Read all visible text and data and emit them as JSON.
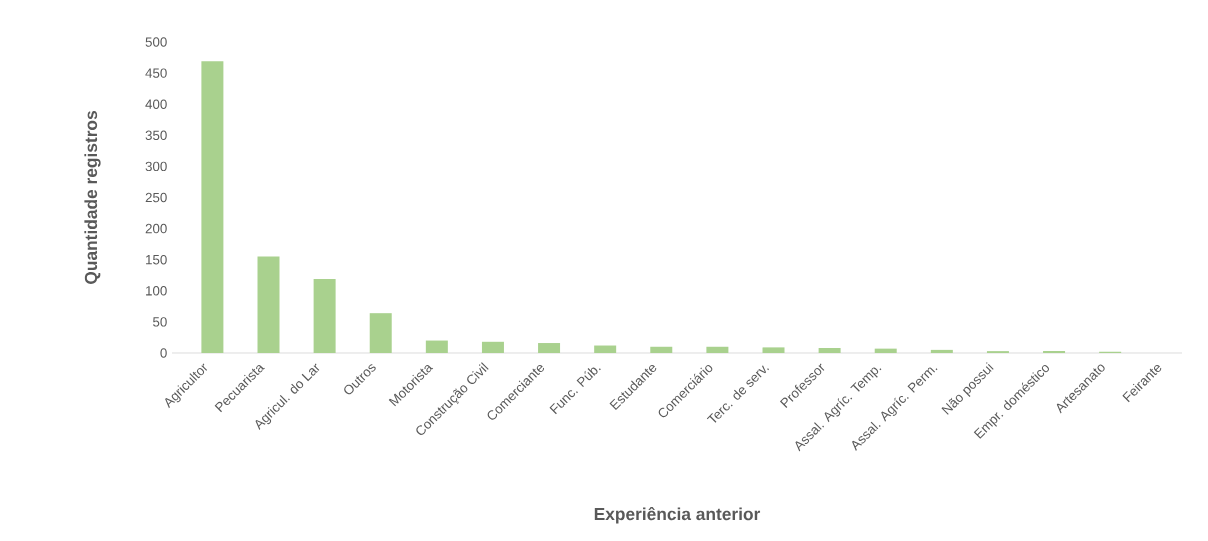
{
  "chart_data": {
    "type": "bar",
    "xlabel": "Experiência anterior",
    "ylabel": "Quantidade registros",
    "categories": [
      "Agricultor",
      "Pecuarista",
      "Agricul. do Lar",
      "Outros",
      "Motorista",
      "Construção Civil",
      "Comerciante",
      "Func. Púb.",
      "Estudante",
      "Comerciário",
      "Terc. de serv.",
      "Professor",
      "Assal. Agríc. Temp.",
      "Assal. Agríc. Perm.",
      "Não possui",
      "Empr. doméstico",
      "Artesanato",
      "Feirante"
    ],
    "values": [
      469,
      155,
      119,
      64,
      20,
      18,
      16,
      12,
      10,
      10,
      9,
      8,
      7,
      5,
      3,
      3,
      2,
      0
    ],
    "color": "#a9d18e",
    "ylim": [
      0,
      500
    ],
    "yticks": [
      0,
      50,
      100,
      150,
      200,
      250,
      300,
      350,
      400,
      450,
      500
    ]
  }
}
